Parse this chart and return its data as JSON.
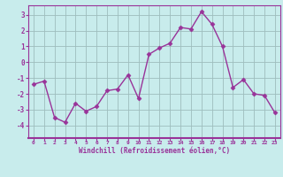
{
  "x": [
    0,
    1,
    2,
    3,
    4,
    5,
    6,
    7,
    8,
    9,
    10,
    11,
    12,
    13,
    14,
    15,
    16,
    17,
    18,
    19,
    20,
    21,
    22,
    23
  ],
  "y": [
    -1.4,
    -1.2,
    -3.5,
    -3.8,
    -2.6,
    -3.1,
    -2.8,
    -1.8,
    -1.7,
    -0.8,
    -2.3,
    0.5,
    0.9,
    1.2,
    2.2,
    2.1,
    3.2,
    2.4,
    1.0,
    -1.6,
    -1.1,
    -2.0,
    -2.1,
    -3.2
  ],
  "line_color": "#993399",
  "marker": "D",
  "marker_size": 2.5,
  "line_width": 1.0,
  "bg_color": "#c8ecec",
  "grid_color": "#9dbdbd",
  "xlabel": "Windchill (Refroidissement éolien,°C)",
  "tick_color": "#993399",
  "ylim": [
    -4.8,
    3.6
  ],
  "yticks": [
    -4,
    -3,
    -2,
    -1,
    0,
    1,
    2,
    3
  ],
  "xlim": [
    -0.5,
    23.5
  ],
  "spine_color": "#993399",
  "bottom_bar_color": "#993399"
}
